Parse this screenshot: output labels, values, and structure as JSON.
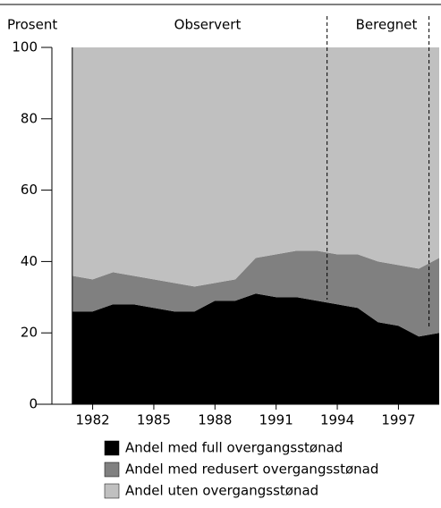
{
  "chart_data": {
    "type": "area",
    "y_axis_label": "Prosent",
    "annotations": [
      {
        "text": "Observert"
      },
      {
        "text": "Beregnet"
      }
    ],
    "dividers": [
      1993.5,
      1998.5
    ],
    "x": [
      1981,
      1982,
      1983,
      1984,
      1985,
      1986,
      1987,
      1988,
      1989,
      1990,
      1991,
      1992,
      1993,
      1994,
      1995,
      1996,
      1997,
      1998,
      1999
    ],
    "stacked": true,
    "series": [
      {
        "name": "Andel med full overgangsstønad",
        "color": "#000000",
        "values": [
          26,
          26,
          28,
          28,
          27,
          26,
          26,
          29,
          29,
          31,
          30,
          30,
          29,
          28,
          27,
          23,
          22,
          19,
          20
        ]
      },
      {
        "name": "Andel med redusert overgangsstønad",
        "color": "#808080",
        "values": [
          10,
          9,
          9,
          8,
          8,
          8,
          7,
          5,
          6,
          10,
          12,
          13,
          14,
          14,
          15,
          17,
          17,
          19,
          21
        ]
      },
      {
        "name": "Andel uten overgangsstønad",
        "color": "#c0c0c0",
        "values": [
          64,
          65,
          63,
          64,
          65,
          66,
          67,
          66,
          65,
          59,
          58,
          57,
          57,
          58,
          58,
          60,
          61,
          62,
          59
        ]
      }
    ],
    "xlim": [
      1980,
      1999
    ],
    "xticks": [
      1982,
      1985,
      1988,
      1991,
      1994,
      1997
    ],
    "ylim": [
      0,
      100
    ],
    "yticks": [
      0,
      20,
      40,
      60,
      80,
      100
    ]
  }
}
